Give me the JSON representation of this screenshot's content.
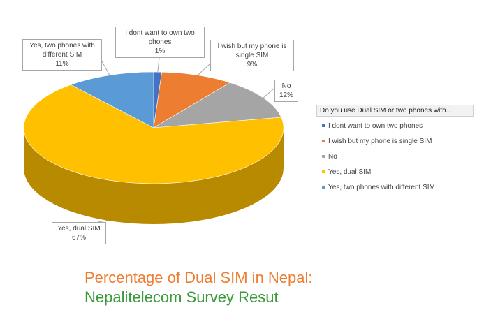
{
  "chart_data": {
    "type": "pie",
    "title": "",
    "categories": [
      "I dont want to own two phones",
      "I wish but my phone is single SIM",
      "No",
      "Yes, dual SIM",
      "Yes, two phones with different SIM"
    ],
    "values": [
      1,
      9,
      12,
      67,
      11
    ],
    "colors": [
      "#4472c4",
      "#ed7d31",
      "#a5a5a5",
      "#ffc000",
      "#5b9bd5"
    ],
    "data_labels": [
      {
        "lines": [
          "I dont want to own two",
          "phones",
          "1%"
        ]
      },
      {
        "lines": [
          "I wish but my phone is",
          "single SIM",
          "9%"
        ]
      },
      {
        "lines": [
          "No",
          "12%"
        ]
      },
      {
        "lines": [
          "Yes, dual SIM",
          "67%"
        ]
      },
      {
        "lines": [
          "Yes, two phones with",
          "different SIM",
          "11%"
        ]
      }
    ],
    "legend": {
      "title": "Do you use Dual SIM or two phones with...",
      "position": "right"
    }
  },
  "caption": {
    "line1": "Percentage of Dual SIM in Nepal:",
    "line2": "Nepalitelecom Survey Resut"
  }
}
